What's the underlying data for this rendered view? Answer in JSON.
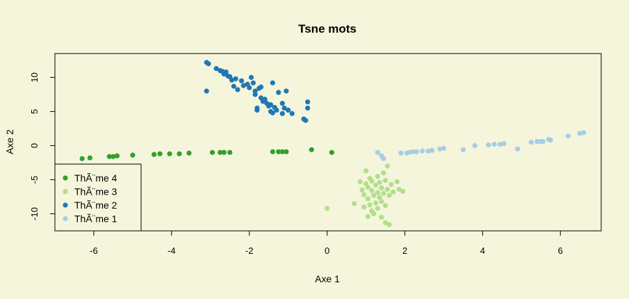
{
  "chart_data": {
    "type": "scatter",
    "title": "Tsne mots",
    "xlabel": "Axe 1",
    "ylabel": "Axe 2",
    "xlim": [
      -7.0,
      7.05
    ],
    "ylim": [
      -12.5,
      13.5
    ],
    "xticks": [
      -6,
      -4,
      -2,
      0,
      2,
      4,
      6
    ],
    "yticks": [
      -10,
      -5,
      0,
      5,
      10
    ],
    "background": "#f5f5dc",
    "legend_position": "bottom-left",
    "series": [
      {
        "name": "ThÃ¨me 4",
        "color": "#33a02c",
        "points": [
          [
            -6.3,
            -1.9
          ],
          [
            -6.1,
            -1.8
          ],
          [
            -5.6,
            -1.6
          ],
          [
            -5.5,
            -1.6
          ],
          [
            -5.4,
            -1.5
          ],
          [
            -5.0,
            -1.4
          ],
          [
            -4.45,
            -1.3
          ],
          [
            -4.3,
            -1.2
          ],
          [
            -4.05,
            -1.2
          ],
          [
            -3.8,
            -1.2
          ],
          [
            -3.55,
            -1.1
          ],
          [
            -2.95,
            -1.0
          ],
          [
            -2.75,
            -1.0
          ],
          [
            -2.65,
            -1.0
          ],
          [
            -2.5,
            -1.0
          ],
          [
            -1.4,
            -0.9
          ],
          [
            -1.25,
            -0.9
          ],
          [
            -1.15,
            -0.9
          ],
          [
            -1.05,
            -0.9
          ],
          [
            -0.4,
            -0.6
          ],
          [
            0.12,
            -1.0
          ]
        ]
      },
      {
        "name": "ThÃ¨me 3",
        "color": "#b2df8a",
        "points": [
          [
            0.0,
            -9.2
          ],
          [
            0.7,
            -8.5
          ],
          [
            0.85,
            -5.3
          ],
          [
            0.9,
            -6.5
          ],
          [
            0.95,
            -7.2
          ],
          [
            0.95,
            -9.0
          ],
          [
            1.0,
            -3.7
          ],
          [
            1.0,
            -5.6
          ],
          [
            1.05,
            -6.1
          ],
          [
            1.05,
            -7.8
          ],
          [
            1.05,
            -10.4
          ],
          [
            1.1,
            -4.8
          ],
          [
            1.1,
            -8.7
          ],
          [
            1.15,
            -5.2
          ],
          [
            1.15,
            -6.6
          ],
          [
            1.15,
            -9.6
          ],
          [
            1.2,
            -7.3
          ],
          [
            1.2,
            -10.0
          ],
          [
            1.25,
            -5.8
          ],
          [
            1.25,
            -8.4
          ],
          [
            1.3,
            -4.5
          ],
          [
            1.3,
            -6.9
          ],
          [
            1.3,
            -9.2
          ],
          [
            1.35,
            -5.4
          ],
          [
            1.35,
            -7.6
          ],
          [
            1.4,
            -6.2
          ],
          [
            1.4,
            -8.2
          ],
          [
            1.4,
            -10.5
          ],
          [
            1.45,
            -4.0
          ],
          [
            1.45,
            -7.0
          ],
          [
            1.5,
            -5.1
          ],
          [
            1.5,
            -8.8
          ],
          [
            1.5,
            -11.3
          ],
          [
            1.55,
            -3.0
          ],
          [
            1.55,
            -6.4
          ],
          [
            1.6,
            -7.3
          ],
          [
            1.6,
            -11.6
          ],
          [
            1.65,
            -5.7
          ],
          [
            1.7,
            -6.8
          ],
          [
            1.8,
            -5.3
          ],
          [
            1.85,
            -6.4
          ],
          [
            1.95,
            -6.7
          ]
        ]
      },
      {
        "name": "ThÃ¨me 2",
        "color": "#1f78b4",
        "points": [
          [
            -3.1,
            12.2
          ],
          [
            -3.05,
            12.0
          ],
          [
            -3.1,
            8.0
          ],
          [
            -2.85,
            11.3
          ],
          [
            -2.75,
            11.0
          ],
          [
            -2.7,
            10.9
          ],
          [
            -2.65,
            10.5
          ],
          [
            -2.6,
            10.8
          ],
          [
            -2.55,
            10.2
          ],
          [
            -2.5,
            10.1
          ],
          [
            -2.45,
            9.6
          ],
          [
            -2.4,
            8.7
          ],
          [
            -2.35,
            9.8
          ],
          [
            -2.3,
            8.2
          ],
          [
            -2.2,
            9.5
          ],
          [
            -2.15,
            8.8
          ],
          [
            -2.05,
            9.0
          ],
          [
            -2.0,
            8.5
          ],
          [
            -1.95,
            10.0
          ],
          [
            -1.9,
            9.2
          ],
          [
            -1.85,
            8.0
          ],
          [
            -1.85,
            7.5
          ],
          [
            -1.8,
            5.5
          ],
          [
            -1.8,
            5.2
          ],
          [
            -1.75,
            8.4
          ],
          [
            -1.7,
            7.0
          ],
          [
            -1.7,
            8.6
          ],
          [
            -1.65,
            6.5
          ],
          [
            -1.6,
            6.8
          ],
          [
            -1.55,
            6.2
          ],
          [
            -1.5,
            5.8
          ],
          [
            -1.45,
            6.0
          ],
          [
            -1.45,
            5.0
          ],
          [
            -1.4,
            9.2
          ],
          [
            -1.4,
            4.8
          ],
          [
            -1.35,
            5.6
          ],
          [
            -1.3,
            5.2
          ],
          [
            -1.25,
            7.8
          ],
          [
            -1.15,
            6.2
          ],
          [
            -1.15,
            4.7
          ],
          [
            -1.1,
            5.5
          ],
          [
            -1.05,
            8.0
          ],
          [
            -1.0,
            5.2
          ],
          [
            -0.9,
            4.7
          ],
          [
            -0.6,
            3.9
          ],
          [
            -0.55,
            3.7
          ],
          [
            -0.5,
            6.4
          ],
          [
            -0.5,
            5.5
          ]
        ]
      },
      {
        "name": "ThÃ¨me 1",
        "color": "#a6cee3",
        "points": [
          [
            1.3,
            -1.0
          ],
          [
            1.4,
            -1.5
          ],
          [
            1.45,
            -1.9
          ],
          [
            1.9,
            -1.1
          ],
          [
            2.05,
            -1.1
          ],
          [
            2.1,
            -1.0
          ],
          [
            2.2,
            -0.9
          ],
          [
            2.3,
            -0.9
          ],
          [
            2.45,
            -0.8
          ],
          [
            2.6,
            -0.8
          ],
          [
            2.7,
            -0.7
          ],
          [
            2.9,
            -0.5
          ],
          [
            3.0,
            -0.4
          ],
          [
            3.5,
            -0.6
          ],
          [
            3.8,
            0.0
          ],
          [
            4.15,
            0.1
          ],
          [
            4.3,
            0.2
          ],
          [
            4.45,
            0.2
          ],
          [
            4.55,
            0.3
          ],
          [
            4.9,
            -0.5
          ],
          [
            5.25,
            0.5
          ],
          [
            5.4,
            0.6
          ],
          [
            5.5,
            0.6
          ],
          [
            5.55,
            0.6
          ],
          [
            5.7,
            0.9
          ],
          [
            5.75,
            0.8
          ],
          [
            6.2,
            1.4
          ],
          [
            6.5,
            1.8
          ],
          [
            6.6,
            1.9
          ]
        ]
      }
    ],
    "legend_order": [
      "ThÃ¨me 4",
      "ThÃ¨me 3",
      "ThÃ¨me 2",
      "ThÃ¨me 1"
    ]
  }
}
